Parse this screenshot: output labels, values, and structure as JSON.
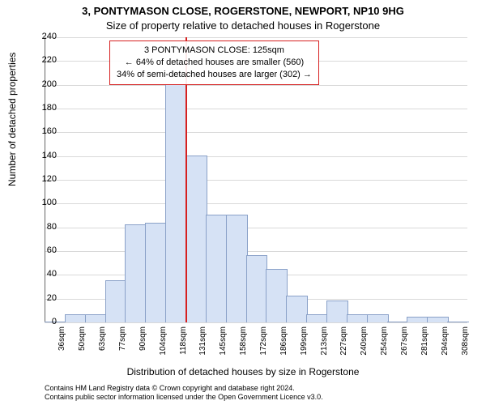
{
  "title_line1": "3, PONTYMASON CLOSE, ROGERSTONE, NEWPORT, NP10 9HG",
  "title_line2": "Size of property relative to detached houses in Rogerstone",
  "ylabel": "Number of detached properties",
  "xlabel": "Distribution of detached houses by size in Rogerstone",
  "chart": {
    "type": "histogram",
    "background_color": "#ffffff",
    "grid_color": "#d9d9d9",
    "axis_color": "#666666",
    "bar_fill": "#d6e2f5",
    "bar_stroke": "#8aa1c8",
    "marker_color": "#d62020",
    "annotation_border": "#d62020",
    "ylim": [
      0,
      240
    ],
    "yticks": [
      0,
      20,
      40,
      60,
      80,
      100,
      120,
      140,
      160,
      180,
      200,
      220,
      240
    ],
    "x_categories": [
      "36sqm",
      "50sqm",
      "63sqm",
      "77sqm",
      "90sqm",
      "104sqm",
      "118sqm",
      "131sqm",
      "145sqm",
      "158sqm",
      "172sqm",
      "186sqm",
      "199sqm",
      "213sqm",
      "227sqm",
      "240sqm",
      "254sqm",
      "267sqm",
      "281sqm",
      "294sqm",
      "308sqm"
    ],
    "values": [
      0,
      6,
      6,
      35,
      82,
      83,
      200,
      140,
      90,
      90,
      56,
      44,
      22,
      6,
      18,
      6,
      6,
      0,
      4,
      4,
      0
    ],
    "marker_index": 7,
    "annotation": {
      "line1": "3 PONTYMASON CLOSE: 125sqm",
      "line2": "← 64% of detached houses are smaller (560)",
      "line3": "34% of semi-detached houses are larger (302) →"
    }
  },
  "footer_line1": "Contains HM Land Registry data © Crown copyright and database right 2024.",
  "footer_line2": "Contains public sector information licensed under the Open Government Licence v3.0."
}
